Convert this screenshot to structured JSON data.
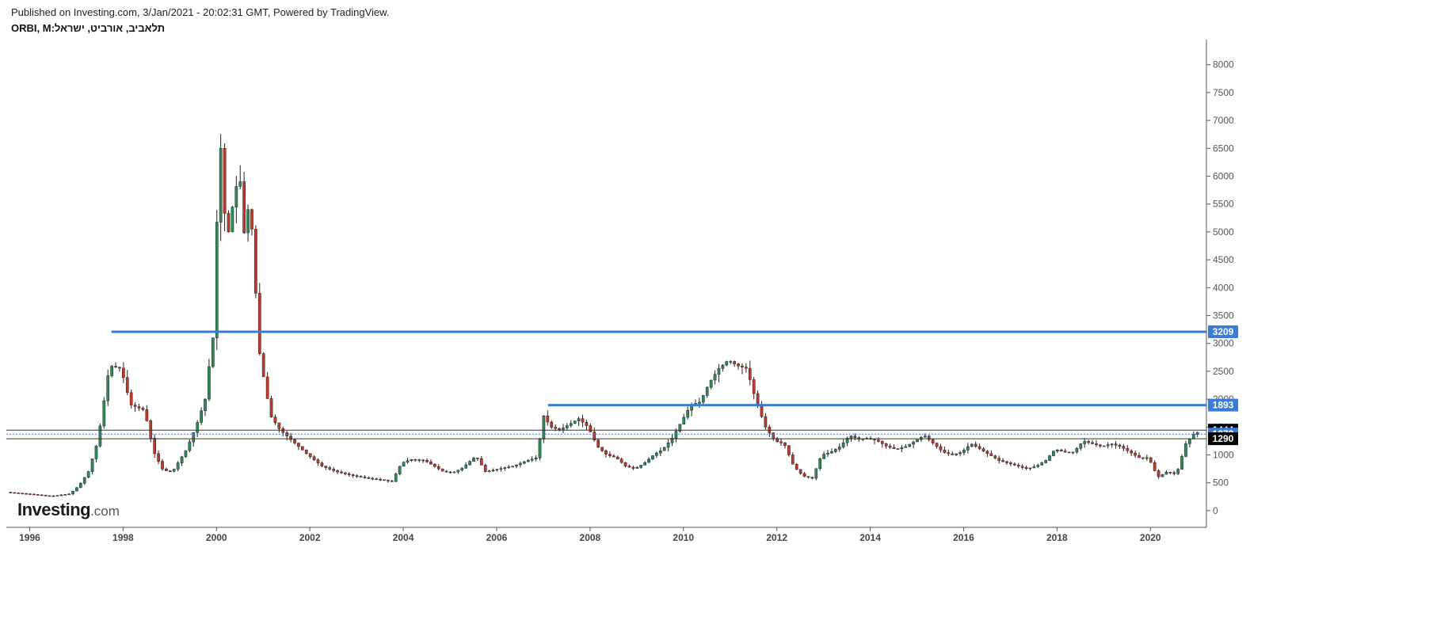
{
  "header": {
    "published": "Published on Investing.com, 3/Jan/2021 - 20:02:31 GMT, Powered by TradingView.",
    "symbol": "תלאביב, אורביט, ישראל:ORBI, M"
  },
  "logo": {
    "brand": "Investing",
    "suffix": ".com"
  },
  "colors": {
    "up": "#2e8b57",
    "down": "#c0392b",
    "wick": "#222222",
    "level_line": "#3a7bd5",
    "grid_axis": "#555555",
    "price_tag_dark": "#000000"
  },
  "chart_data": {
    "type": "candlestick",
    "title": "",
    "interval": "M",
    "x_ticks": [
      "1996",
      "1998",
      "2000",
      "2002",
      "2004",
      "2006",
      "2008",
      "2010",
      "2012",
      "2014",
      "2016",
      "2018",
      "2020"
    ],
    "x_range": [
      1995.5,
      2021.2
    ],
    "y_ticks": [
      0,
      500,
      1000,
      1500,
      2000,
      2500,
      3000,
      3500,
      4000,
      4500,
      5000,
      5500,
      6000,
      6500,
      7000,
      7500,
      8000
    ],
    "ylim": [
      -300,
      8450
    ],
    "grid": false,
    "horizontal_levels": [
      {
        "value": 3209,
        "start": 1997.75,
        "label": "3209",
        "style": "blue-thick"
      },
      {
        "value": 1893,
        "start": 2007.1,
        "label": "1893",
        "style": "blue-thick"
      },
      {
        "value": 1444,
        "start": 1995.5,
        "label": "1444",
        "style": "dark-thin"
      },
      {
        "value": 1373,
        "start": 1995.5,
        "label": "1373",
        "style": "blue-dotted"
      },
      {
        "value": 1290,
        "start": 1995.5,
        "label": "1290",
        "style": "dark-thin"
      }
    ],
    "path": [
      [
        1995.55,
        330
      ],
      [
        1996.0,
        300
      ],
      [
        1996.5,
        260
      ],
      [
        1996.9,
        300
      ],
      [
        1997.1,
        450
      ],
      [
        1997.3,
        700
      ],
      [
        1997.5,
        1250
      ],
      [
        1997.75,
        2600
      ],
      [
        1998.0,
        2550
      ],
      [
        1998.2,
        1900
      ],
      [
        1998.5,
        1800
      ],
      [
        1998.7,
        1050
      ],
      [
        1998.9,
        720
      ],
      [
        1999.1,
        700
      ],
      [
        1999.4,
        1100
      ],
      [
        1999.6,
        1500
      ],
      [
        1999.8,
        2000
      ],
      [
        1999.9,
        2700
      ],
      [
        2000.0,
        3300
      ],
      [
        2000.1,
        7050
      ],
      [
        2000.2,
        5400
      ],
      [
        2000.3,
        5000
      ],
      [
        2000.45,
        5800
      ],
      [
        2000.55,
        5900
      ],
      [
        2000.65,
        4800
      ],
      [
        2000.75,
        5700
      ],
      [
        2000.85,
        4400
      ],
      [
        2000.95,
        2900
      ],
      [
        2001.05,
        2400
      ],
      [
        2001.2,
        1700
      ],
      [
        2001.4,
        1450
      ],
      [
        2001.6,
        1300
      ],
      [
        2001.8,
        1150
      ],
      [
        2002.0,
        1000
      ],
      [
        2002.3,
        800
      ],
      [
        2002.6,
        700
      ],
      [
        2003.0,
        620
      ],
      [
        2003.3,
        580
      ],
      [
        2003.6,
        550
      ],
      [
        2003.8,
        520
      ],
      [
        2004.0,
        850
      ],
      [
        2004.2,
        920
      ],
      [
        2004.5,
        900
      ],
      [
        2004.7,
        800
      ],
      [
        2004.9,
        700
      ],
      [
        2005.1,
        680
      ],
      [
        2005.3,
        760
      ],
      [
        2005.6,
        980
      ],
      [
        2005.8,
        700
      ],
      [
        2006.1,
        750
      ],
      [
        2006.4,
        800
      ],
      [
        2006.7,
        900
      ],
      [
        2006.9,
        950
      ],
      [
        2007.05,
        1700
      ],
      [
        2007.2,
        1500
      ],
      [
        2007.4,
        1450
      ],
      [
        2007.6,
        1550
      ],
      [
        2007.8,
        1650
      ],
      [
        2008.0,
        1500
      ],
      [
        2008.2,
        1150
      ],
      [
        2008.4,
        1000
      ],
      [
        2008.6,
        950
      ],
      [
        2008.8,
        800
      ],
      [
        2009.0,
        750
      ],
      [
        2009.2,
        850
      ],
      [
        2009.4,
        1000
      ],
      [
        2009.6,
        1100
      ],
      [
        2009.8,
        1300
      ],
      [
        2010.0,
        1600
      ],
      [
        2010.2,
        1900
      ],
      [
        2010.4,
        1950
      ],
      [
        2010.6,
        2300
      ],
      [
        2010.8,
        2550
      ],
      [
        2011.0,
        2700
      ],
      [
        2011.2,
        2600
      ],
      [
        2011.4,
        2550
      ],
      [
        2011.6,
        1950
      ],
      [
        2011.8,
        1500
      ],
      [
        2012.0,
        1250
      ],
      [
        2012.2,
        1200
      ],
      [
        2012.4,
        800
      ],
      [
        2012.6,
        620
      ],
      [
        2012.8,
        580
      ],
      [
        2013.0,
        1000
      ],
      [
        2013.2,
        1050
      ],
      [
        2013.4,
        1150
      ],
      [
        2013.6,
        1350
      ],
      [
        2013.8,
        1280
      ],
      [
        2014.0,
        1300
      ],
      [
        2014.2,
        1250
      ],
      [
        2014.4,
        1150
      ],
      [
        2014.6,
        1100
      ],
      [
        2014.8,
        1150
      ],
      [
        2015.0,
        1250
      ],
      [
        2015.2,
        1350
      ],
      [
        2015.4,
        1200
      ],
      [
        2015.6,
        1050
      ],
      [
        2015.8,
        1000
      ],
      [
        2016.0,
        1050
      ],
      [
        2016.2,
        1200
      ],
      [
        2016.4,
        1100
      ],
      [
        2016.6,
        1000
      ],
      [
        2016.8,
        900
      ],
      [
        2017.0,
        850
      ],
      [
        2017.2,
        800
      ],
      [
        2017.4,
        750
      ],
      [
        2017.6,
        800
      ],
      [
        2017.8,
        900
      ],
      [
        2018.0,
        1100
      ],
      [
        2018.2,
        1050
      ],
      [
        2018.4,
        1050
      ],
      [
        2018.6,
        1250
      ],
      [
        2018.8,
        1200
      ],
      [
        2019.0,
        1150
      ],
      [
        2019.2,
        1200
      ],
      [
        2019.4,
        1150
      ],
      [
        2019.6,
        1050
      ],
      [
        2019.8,
        950
      ],
      [
        2020.0,
        950
      ],
      [
        2020.2,
        600
      ],
      [
        2020.4,
        700
      ],
      [
        2020.6,
        650
      ],
      [
        2020.8,
        1200
      ],
      [
        2021.0,
        1400
      ]
    ]
  }
}
